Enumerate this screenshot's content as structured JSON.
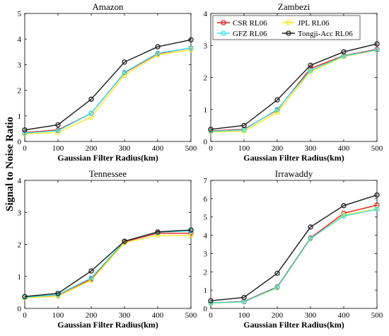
{
  "figure": {
    "ylabel": "Signal to Noise Ratio"
  },
  "legend": {
    "placement": "inside top of Zambezi panel",
    "entries": [
      {
        "name": "CSR RL06",
        "color": "#e8191b"
      },
      {
        "name": "JPL RL06",
        "color": "#f2ea2c"
      },
      {
        "name": "GFZ RL06",
        "color": "#3de0e6"
      },
      {
        "name": "Tongji-Acc RL06",
        "color": "#1a1a1a"
      }
    ]
  },
  "chart_data": [
    {
      "type": "line",
      "title": "Amazon",
      "xlabel": "Gaussian Filter Radius(km)",
      "x": [
        0,
        100,
        200,
        300,
        400,
        500
      ],
      "xticks": [
        "0",
        "100",
        "200",
        "300",
        "400",
        "500"
      ],
      "ylim": [
        0,
        5
      ],
      "yticks": [
        "0",
        "1",
        "2",
        "3",
        "4",
        "5"
      ],
      "grid": false,
      "series": [
        {
          "name": "CSR RL06",
          "color": "#e8191b",
          "values": [
            0.35,
            0.45,
            1.1,
            2.68,
            3.43,
            3.65
          ]
        },
        {
          "name": "JPL RL06",
          "color": "#f2ea2c",
          "values": [
            0.3,
            0.35,
            0.95,
            2.58,
            3.38,
            3.58
          ]
        },
        {
          "name": "GFZ RL06",
          "color": "#3de0e6",
          "values": [
            0.33,
            0.42,
            1.1,
            2.7,
            3.45,
            3.65
          ]
        },
        {
          "name": "Tongji-Acc RL06",
          "color": "#1a1a1a",
          "values": [
            0.45,
            0.65,
            1.65,
            3.1,
            3.7,
            3.97
          ]
        }
      ]
    },
    {
      "type": "line",
      "title": "Zambezi",
      "xlabel": "Gaussian Filter Radius(km)",
      "x": [
        0,
        100,
        200,
        300,
        400,
        500
      ],
      "xticks": [
        "0",
        "100",
        "200",
        "300",
        "400",
        "500"
      ],
      "ylim": [
        0,
        4
      ],
      "yticks": [
        "0",
        "1",
        "2",
        "3",
        "4"
      ],
      "grid": false,
      "series": [
        {
          "name": "CSR RL06",
          "color": "#e8191b",
          "values": [
            0.33,
            0.38,
            0.98,
            2.28,
            2.68,
            2.88
          ]
        },
        {
          "name": "JPL RL06",
          "color": "#f2ea2c",
          "values": [
            0.3,
            0.32,
            0.9,
            2.18,
            2.65,
            2.85
          ]
        },
        {
          "name": "GFZ RL06",
          "color": "#3de0e6",
          "values": [
            0.32,
            0.36,
            1.0,
            2.22,
            2.67,
            2.86
          ]
        },
        {
          "name": "Tongji-Acc RL06",
          "color": "#1a1a1a",
          "values": [
            0.38,
            0.5,
            1.3,
            2.38,
            2.8,
            3.05
          ]
        }
      ]
    },
    {
      "type": "line",
      "title": "Tennessee",
      "xlabel": "Gaussian Filter Radius(km)",
      "x": [
        0,
        100,
        200,
        300,
        400,
        500
      ],
      "xticks": [
        "0",
        "100",
        "200",
        "300",
        "400",
        "500"
      ],
      "ylim": [
        0,
        4
      ],
      "yticks": [
        "0",
        "1",
        "2",
        "3",
        "4"
      ],
      "grid": false,
      "series": [
        {
          "name": "CSR RL06",
          "color": "#e8191b",
          "values": [
            0.35,
            0.42,
            0.92,
            2.08,
            2.35,
            2.35
          ]
        },
        {
          "name": "JPL RL06",
          "color": "#f2ea2c",
          "values": [
            0.33,
            0.38,
            0.88,
            2.05,
            2.28,
            2.28
          ]
        },
        {
          "name": "GFZ RL06",
          "color": "#3de0e6",
          "values": [
            0.35,
            0.43,
            0.95,
            2.1,
            2.38,
            2.42
          ]
        },
        {
          "name": "Tongji-Acc RL06",
          "color": "#1a1a1a",
          "values": [
            0.37,
            0.47,
            1.17,
            2.1,
            2.39,
            2.45
          ]
        }
      ]
    },
    {
      "type": "line",
      "title": "Irrawaddy",
      "xlabel": "Gaussian Filter Radius(km)",
      "x": [
        0,
        100,
        200,
        300,
        400,
        500
      ],
      "xticks": [
        "0",
        "100",
        "200",
        "300",
        "400",
        "500"
      ],
      "ylim": [
        0,
        7
      ],
      "yticks": [
        "0",
        "1",
        "2",
        "3",
        "4",
        "5",
        "6",
        "7"
      ],
      "grid": false,
      "series": [
        {
          "name": "CSR RL06",
          "color": "#e8191b",
          "values": [
            0.3,
            0.38,
            1.18,
            3.85,
            5.2,
            5.65
          ]
        },
        {
          "name": "JPL RL06",
          "color": "#f2ea2c",
          "values": [
            0.28,
            0.35,
            1.12,
            3.8,
            5.1,
            5.45
          ]
        },
        {
          "name": "GFZ RL06",
          "color": "#3de0e6",
          "values": [
            0.3,
            0.36,
            1.15,
            3.82,
            5.05,
            5.42
          ]
        },
        {
          "name": "Tongji-Acc RL06",
          "color": "#1a1a1a",
          "values": [
            0.42,
            0.6,
            1.92,
            4.45,
            5.62,
            6.2
          ]
        }
      ]
    }
  ]
}
